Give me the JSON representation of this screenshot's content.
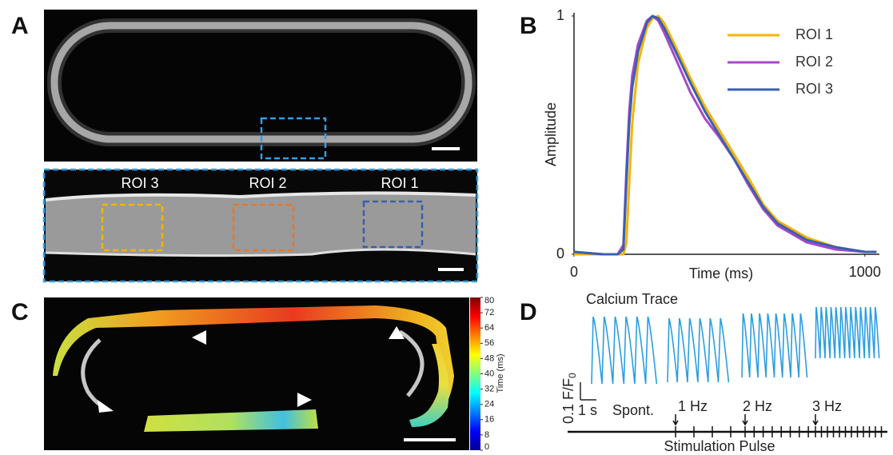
{
  "panel_labels": [
    "A",
    "B",
    "C",
    "D"
  ],
  "panel_a": {
    "roi_labels": [
      "ROI 3",
      "ROI 2",
      "ROI 1"
    ]
  },
  "chart_data": {
    "type": "line",
    "xlabel": "Time (ms)",
    "ylabel": "Amplitude",
    "xlim": [
      0,
      1050
    ],
    "xticks": [
      0,
      1000
    ],
    "ylim": [
      0,
      1
    ],
    "yticks": [
      0,
      1
    ],
    "legend": "upper right",
    "x": [
      0,
      100,
      150,
      170,
      180,
      190,
      200,
      220,
      250,
      270,
      290,
      310,
      350,
      400,
      450,
      500,
      550,
      600,
      650,
      700,
      800,
      900,
      1000,
      1040
    ],
    "series": [
      {
        "name": "ROI 1",
        "color": "#f5b400",
        "values": [
          0,
          0,
          0,
          0,
          0.05,
          0.3,
          0.55,
          0.8,
          0.95,
          0.99,
          1.0,
          0.97,
          0.87,
          0.74,
          0.62,
          0.52,
          0.42,
          0.32,
          0.21,
          0.14,
          0.07,
          0.03,
          0.01,
          0.01
        ]
      },
      {
        "name": "ROI 2",
        "color": "#a64ac9",
        "values": [
          0.01,
          0,
          0,
          0.04,
          0.35,
          0.6,
          0.75,
          0.88,
          0.98,
          1.0,
          0.98,
          0.93,
          0.82,
          0.68,
          0.57,
          0.49,
          0.4,
          0.29,
          0.19,
          0.12,
          0.05,
          0.02,
          0.01,
          0.01
        ]
      },
      {
        "name": "ROI 3",
        "color": "#3a5fb0",
        "values": [
          0.01,
          0,
          0,
          0.02,
          0.3,
          0.55,
          0.7,
          0.85,
          0.97,
          1.0,
          0.99,
          0.95,
          0.85,
          0.72,
          0.6,
          0.5,
          0.4,
          0.3,
          0.2,
          0.13,
          0.06,
          0.03,
          0.01,
          0.01
        ]
      }
    ]
  },
  "colorbar": {
    "label": "Time (ms)",
    "lim": [
      0,
      80
    ],
    "ticks": [
      0,
      8,
      16,
      24,
      32,
      40,
      48,
      56,
      64,
      72,
      80
    ]
  },
  "panel_d": {
    "title": "Calcium Trace",
    "scale_y": "0.1 F/F",
    "scale_y_sub": "0",
    "scale_x": "1 s",
    "conditions": [
      "Spont.",
      "1 Hz",
      "2 Hz",
      "3 Hz"
    ],
    "axis_label": "Stimulation Pulse"
  }
}
